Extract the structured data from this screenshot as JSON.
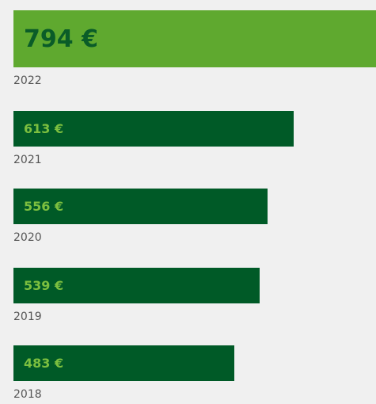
{
  "chart_data": {
    "type": "bar",
    "categories": [
      "2022",
      "2021",
      "2020",
      "2019",
      "2018"
    ],
    "values": [
      794,
      613,
      556,
      539,
      483
    ],
    "value_labels": [
      "794 €",
      "613 €",
      "556 €",
      "539 €",
      "483 €"
    ],
    "colors": [
      "#5fa92f",
      "#005a27",
      "#005a27",
      "#005a27",
      "#005a27"
    ]
  }
}
